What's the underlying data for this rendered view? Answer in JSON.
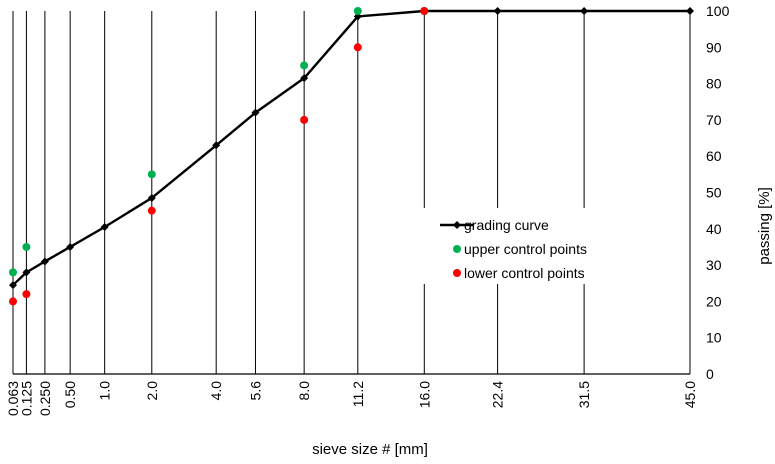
{
  "chart_data": {
    "type": "line",
    "xlabel": "sieve size # [mm]",
    "ylabel": "passing [%]",
    "x_scale": "power-0.45",
    "categories": [
      "0.063",
      "0.125",
      "0.250",
      "0.50",
      "1.0",
      "2.0",
      "4.0",
      "5.6",
      "8.0",
      "11.2",
      "16.0",
      "22.4",
      "31.5",
      "45.0"
    ],
    "x": [
      0.063,
      0.125,
      0.25,
      0.5,
      1.0,
      2.0,
      4.0,
      5.6,
      8.0,
      11.2,
      16.0,
      22.4,
      31.5,
      45.0
    ],
    "ylim": [
      0,
      100
    ],
    "yticks": [
      0,
      10,
      20,
      30,
      40,
      50,
      60,
      70,
      80,
      90,
      100
    ],
    "grid": "vertical lines at each sieve size",
    "legend_position": "right",
    "series": [
      {
        "name": "grading curve",
        "color": "#000000",
        "marker": "diamond",
        "x": [
          0.063,
          0.125,
          0.25,
          0.5,
          1.0,
          2.0,
          4.0,
          5.6,
          8.0,
          11.2,
          16.0,
          22.4,
          31.5,
          45.0
        ],
        "y": [
          24.5,
          28,
          31,
          35,
          40.5,
          48.5,
          63,
          72,
          81.5,
          98.5,
          100,
          100,
          100,
          100
        ]
      },
      {
        "name": "upper control points",
        "color": "#00b050",
        "marker": "circle",
        "x": [
          0.063,
          0.125,
          2.0,
          8.0,
          11.2,
          16.0
        ],
        "y": [
          28,
          35,
          55,
          85,
          100,
          100
        ]
      },
      {
        "name": "lower control points",
        "color": "#ff0000",
        "marker": "circle",
        "x": [
          0.063,
          0.125,
          2.0,
          8.0,
          11.2,
          16.0
        ],
        "y": [
          20,
          22,
          45,
          70,
          90,
          100
        ]
      }
    ]
  }
}
